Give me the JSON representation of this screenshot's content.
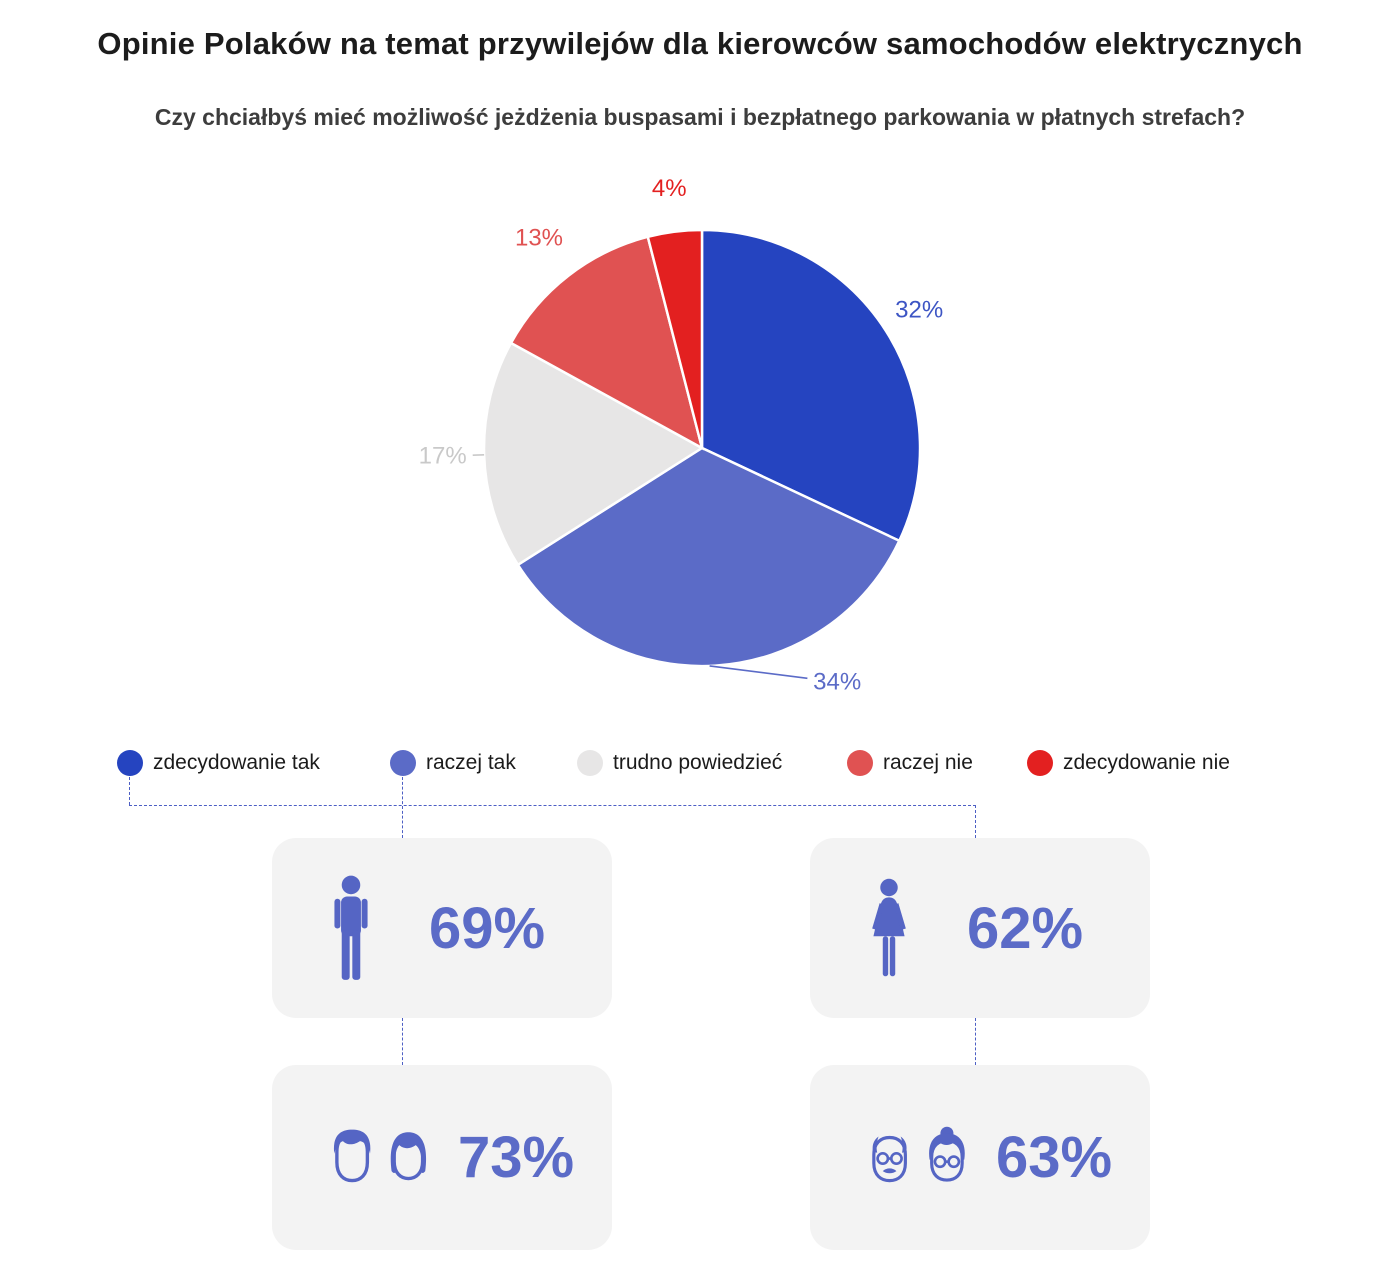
{
  "title": "Opinie Polaków na temat przywilejów dla kierowców samochodów elektrycznych",
  "subtitle": "Czy chciałbyś mieć możliwość jeżdżenia buspasami i bezpłatnego parkowania w płatnych strefach?",
  "chart_data": {
    "type": "pie",
    "title": "Czy chciałbyś mieć możliwość jeżdżenia buspasami i bezpłatnego parkowania w płatnych strefach?",
    "labels": [
      "zdecydowanie tak",
      "raczej tak",
      "trudno powiedzieć",
      "raczej nie",
      "zdecydowanie nie"
    ],
    "values": [
      32,
      34,
      17,
      13,
      4
    ],
    "value_labels": [
      "32%",
      "34%",
      "17%",
      "13%",
      "4%"
    ],
    "colors": [
      "#2544c0",
      "#5b6bc7",
      "#e7e6e6",
      "#e05252",
      "#e32020"
    ],
    "label_colors": [
      "#3d55c4",
      "#5b6bc7",
      "#c9c9c9",
      "#e05252",
      "#e32020"
    ],
    "start_angle_deg": 0,
    "direction": "clockwise",
    "legend_position": "bottom"
  },
  "demographics": {
    "men": {
      "value": "69%",
      "icon": "man-icon"
    },
    "women": {
      "value": "62%",
      "icon": "woman-icon"
    },
    "young": {
      "value": "73%",
      "icon": "young-couple-icon"
    },
    "seniors": {
      "value": "63%",
      "icon": "senior-couple-icon"
    }
  },
  "colors": {
    "accent_indigo": "#5b6bc7",
    "accent_blue": "#2544c0",
    "card_background": "#f3f3f3",
    "connector_line": "#4d5fc4"
  }
}
